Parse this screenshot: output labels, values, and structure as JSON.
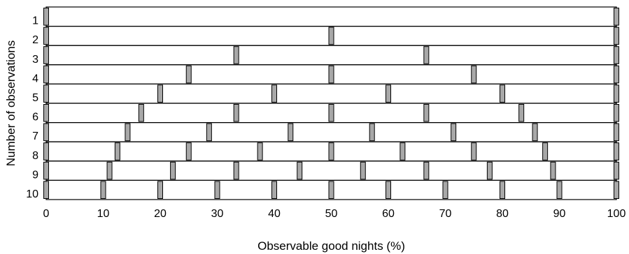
{
  "chart_data": {
    "type": "bar",
    "xlabel": "Observable good nights (%)",
    "ylabel": "Number of observations",
    "xlim": [
      0,
      100
    ],
    "x_ticks": [
      0,
      10,
      20,
      30,
      40,
      50,
      60,
      70,
      80,
      90,
      100
    ],
    "rows": [
      1,
      2,
      3,
      4,
      5,
      6,
      7,
      8,
      9,
      10
    ],
    "description": "Each row n splits 0-100% into n equal segments; dividers are drawn at k*100/n for k = 0..n.",
    "grid": false,
    "legend": "none"
  }
}
